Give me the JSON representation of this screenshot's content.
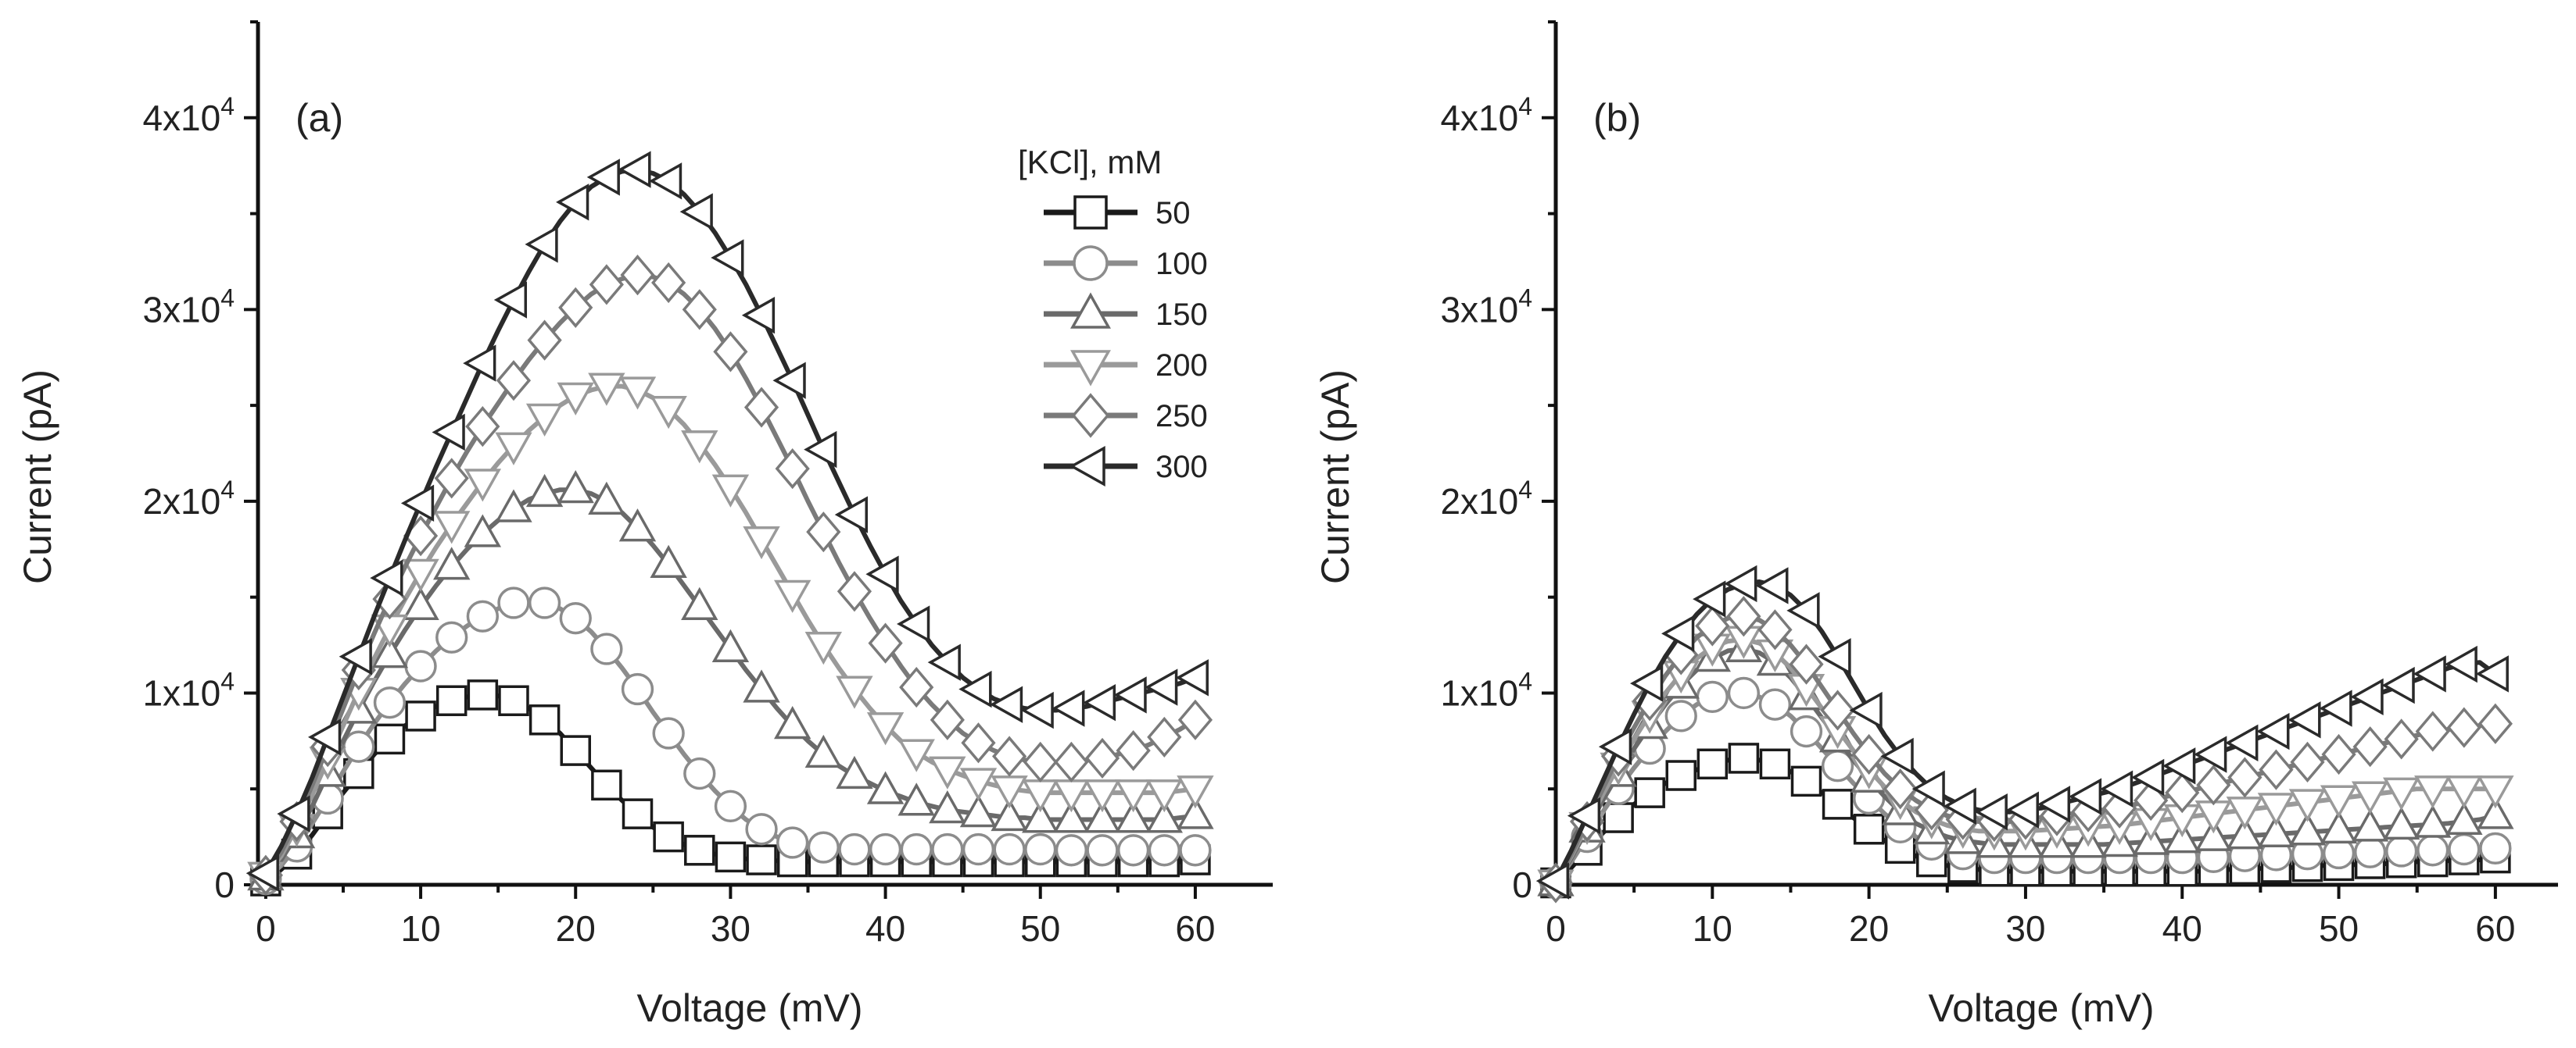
{
  "figure": {
    "legend": {
      "title": "[KCl], mM",
      "entries": [
        {
          "label": "50",
          "marker": "square",
          "color": "#1a1a1a"
        },
        {
          "label": "100",
          "marker": "circle",
          "color": "#8c8c8c"
        },
        {
          "label": "150",
          "marker": "triangle-up",
          "color": "#6a6a6a"
        },
        {
          "label": "200",
          "marker": "triangle-down",
          "color": "#9a9a9a"
        },
        {
          "label": "250",
          "marker": "diamond",
          "color": "#7a7a7a"
        },
        {
          "label": "300",
          "marker": "triangle-left",
          "color": "#2a2a2a"
        }
      ]
    }
  },
  "chart_data": [
    {
      "type": "line",
      "panel_label": "(a)",
      "xlabel": "Voltage (mV)",
      "ylabel": "Current (pA)",
      "xlim": [
        -0.5,
        65
      ],
      "ylim": [
        0,
        45000
      ],
      "xticks": [
        0,
        10,
        20,
        30,
        40,
        50,
        60
      ],
      "xtick_labels": [
        "0",
        "10",
        "20",
        "30",
        "40",
        "50",
        "60"
      ],
      "yticks": [
        0,
        10000,
        20000,
        30000,
        40000
      ],
      "ytick_labels": [
        {
          "text": "0",
          "exp": ""
        },
        {
          "text": "1x10",
          "exp": "4"
        },
        {
          "text": "2x10",
          "exp": "4"
        },
        {
          "text": "3x10",
          "exp": "4"
        },
        {
          "text": "4x10",
          "exp": "4"
        }
      ],
      "x": [
        0,
        1,
        2,
        3,
        4,
        5,
        6,
        7,
        8,
        9,
        10,
        11,
        12,
        13,
        14,
        15,
        16,
        17,
        18,
        19,
        20,
        21,
        22,
        23,
        24,
        25,
        26,
        27,
        28,
        29,
        30,
        31,
        32,
        33,
        34,
        35,
        36,
        37,
        38,
        39,
        40,
        41,
        42,
        43,
        44,
        45,
        46,
        47,
        48,
        49,
        50,
        51,
        52,
        53,
        54,
        55,
        56,
        57,
        58,
        59,
        60
      ],
      "series": [
        {
          "name": "50",
          "values": [
            200,
            800,
            1600,
            2600,
            3700,
            4800,
            5800,
            6800,
            7600,
            8300,
            8800,
            9300,
            9600,
            9800,
            9900,
            9850,
            9600,
            9200,
            8600,
            7900,
            7000,
            6100,
            5200,
            4400,
            3700,
            3000,
            2500,
            2100,
            1800,
            1600,
            1450,
            1350,
            1300,
            1250,
            1200,
            1200,
            1200,
            1200,
            1200,
            1200,
            1200,
            1200,
            1200,
            1200,
            1200,
            1200,
            1200,
            1200,
            1200,
            1200,
            1200,
            1200,
            1200,
            1200,
            1200,
            1200,
            1200,
            1200,
            1200,
            1200,
            1300
          ]
        },
        {
          "name": "100",
          "values": [
            300,
            1000,
            2000,
            3200,
            4500,
            5900,
            7200,
            8400,
            9500,
            10500,
            11400,
            12200,
            12900,
            13500,
            14000,
            14400,
            14700,
            14800,
            14700,
            14400,
            13900,
            13200,
            12300,
            11300,
            10200,
            9000,
            7900,
            6800,
            5800,
            4900,
            4100,
            3400,
            2900,
            2500,
            2200,
            2050,
            1950,
            1900,
            1850,
            1850,
            1850,
            1850,
            1850,
            1850,
            1850,
            1850,
            1850,
            1850,
            1850,
            1850,
            1850,
            1800,
            1800,
            1800,
            1800,
            1800,
            1800,
            1800,
            1800,
            1800,
            1800
          ]
        },
        {
          "name": "150",
          "values": [
            400,
            1300,
            2600,
            4100,
            5800,
            7500,
            9100,
            10600,
            12000,
            13300,
            14500,
            15600,
            16600,
            17500,
            18300,
            19000,
            19600,
            20100,
            20400,
            20600,
            20600,
            20400,
            20000,
            19400,
            18600,
            17700,
            16700,
            15600,
            14500,
            13400,
            12300,
            11200,
            10200,
            9200,
            8300,
            7500,
            6800,
            6200,
            5700,
            5300,
            4900,
            4600,
            4300,
            4100,
            3900,
            3800,
            3700,
            3600,
            3500,
            3500,
            3400,
            3400,
            3400,
            3400,
            3400,
            3400,
            3400,
            3400,
            3400,
            3500,
            3600
          ]
        },
        {
          "name": "200",
          "values": [
            500,
            1500,
            3000,
            4700,
            6500,
            8300,
            10100,
            11800,
            13400,
            14900,
            16300,
            17600,
            18800,
            19900,
            21000,
            22000,
            22900,
            23700,
            24400,
            25000,
            25500,
            25800,
            26000,
            26000,
            25800,
            25400,
            24800,
            24000,
            23000,
            21900,
            20700,
            19400,
            18000,
            16600,
            15200,
            13800,
            12500,
            11300,
            10200,
            9200,
            8300,
            7500,
            6900,
            6400,
            6000,
            5700,
            5400,
            5200,
            5000,
            4900,
            4800,
            4800,
            4800,
            4800,
            4800,
            4800,
            4800,
            4800,
            4800,
            4900,
            5000
          ]
        },
        {
          "name": "250",
          "values": [
            500,
            1700,
            3300,
            5200,
            7200,
            9200,
            11200,
            13100,
            14900,
            16600,
            18200,
            19700,
            21200,
            22600,
            23900,
            25100,
            26300,
            27400,
            28400,
            29300,
            30100,
            30800,
            31300,
            31600,
            31800,
            31700,
            31400,
            30800,
            30000,
            29000,
            27800,
            26400,
            24900,
            23300,
            21700,
            20000,
            18400,
            16800,
            15300,
            13900,
            12600,
            11400,
            10300,
            9400,
            8600,
            7900,
            7400,
            7000,
            6700,
            6500,
            6400,
            6400,
            6400,
            6500,
            6600,
            6800,
            7000,
            7300,
            7700,
            8100,
            8600
          ]
        },
        {
          "name": "300",
          "values": [
            600,
            2000,
            3700,
            5600,
            7700,
            9800,
            11900,
            14000,
            16000,
            18000,
            19900,
            21800,
            23600,
            25400,
            27200,
            28900,
            30500,
            32000,
            33400,
            34600,
            35600,
            36400,
            36900,
            37200,
            37300,
            37100,
            36700,
            36000,
            35100,
            34000,
            32700,
            31300,
            29700,
            28000,
            26300,
            24500,
            22700,
            21000,
            19300,
            17700,
            16200,
            14800,
            13600,
            12500,
            11600,
            10800,
            10200,
            9700,
            9400,
            9200,
            9100,
            9100,
            9200,
            9300,
            9500,
            9700,
            9900,
            10100,
            10300,
            10500,
            10800
          ]
        }
      ]
    },
    {
      "type": "line",
      "panel_label": "(b)",
      "xlabel": "Voltage (mV)",
      "ylabel": "Current (pA)",
      "xlim": [
        0,
        64
      ],
      "ylim": [
        0,
        45000
      ],
      "xticks": [
        0,
        10,
        20,
        30,
        40,
        50,
        60
      ],
      "xtick_labels": [
        "0",
        "10",
        "20",
        "30",
        "40",
        "50",
        "60"
      ],
      "yticks": [
        0,
        10000,
        20000,
        30000,
        40000
      ],
      "ytick_labels": [
        {
          "text": "0",
          "exp": ""
        },
        {
          "text": "1x10",
          "exp": "4"
        },
        {
          "text": "2x10",
          "exp": "4"
        },
        {
          "text": "3x10",
          "exp": "4"
        },
        {
          "text": "4x10",
          "exp": "4"
        }
      ],
      "x": [
        0,
        1,
        2,
        3,
        4,
        5,
        6,
        7,
        8,
        9,
        10,
        11,
        12,
        13,
        14,
        15,
        16,
        17,
        18,
        19,
        20,
        21,
        22,
        23,
        24,
        25,
        26,
        27,
        28,
        29,
        30,
        31,
        32,
        33,
        34,
        35,
        36,
        37,
        38,
        39,
        40,
        41,
        42,
        43,
        44,
        45,
        46,
        47,
        48,
        49,
        50,
        51,
        52,
        53,
        54,
        55,
        56,
        57,
        58,
        59,
        60
      ],
      "series": [
        {
          "name": "50",
          "values": [
            100,
            900,
            1800,
            2700,
            3500,
            4200,
            4800,
            5300,
            5700,
            6000,
            6300,
            6500,
            6600,
            6500,
            6300,
            5900,
            5400,
            4800,
            4200,
            3500,
            2900,
            2300,
            1900,
            1500,
            1200,
            1000,
            900,
            800,
            700,
            700,
            700,
            700,
            700,
            700,
            700,
            700,
            700,
            700,
            700,
            700,
            700,
            700,
            750,
            800,
            800,
            850,
            900,
            900,
            950,
            1000,
            1000,
            1050,
            1100,
            1100,
            1150,
            1200,
            1200,
            1250,
            1300,
            1300,
            1400
          ]
        },
        {
          "name": "100",
          "values": [
            100,
            1200,
            2500,
            3800,
            5000,
            6100,
            7100,
            8000,
            8800,
            9400,
            9800,
            10000,
            10000,
            9800,
            9400,
            8800,
            8000,
            7100,
            6200,
            5300,
            4500,
            3700,
            3000,
            2500,
            2100,
            1800,
            1600,
            1500,
            1400,
            1400,
            1400,
            1400,
            1400,
            1400,
            1400,
            1400,
            1400,
            1400,
            1400,
            1400,
            1400,
            1450,
            1450,
            1500,
            1500,
            1550,
            1550,
            1600,
            1600,
            1650,
            1650,
            1700,
            1700,
            1750,
            1750,
            1800,
            1800,
            1850,
            1850,
            1900,
            1900
          ]
        },
        {
          "name": "150",
          "values": [
            100,
            1400,
            2900,
            4400,
            5800,
            7100,
            8300,
            9400,
            10400,
            11200,
            11800,
            12200,
            12300,
            12100,
            11600,
            10800,
            9800,
            8700,
            7600,
            6500,
            5500,
            4600,
            3800,
            3200,
            2800,
            2500,
            2300,
            2200,
            2100,
            2100,
            2100,
            2100,
            2100,
            2100,
            2100,
            2100,
            2150,
            2200,
            2250,
            2300,
            2350,
            2400,
            2450,
            2500,
            2550,
            2600,
            2650,
            2700,
            2750,
            2800,
            2850,
            2900,
            2950,
            3000,
            3050,
            3100,
            3150,
            3200,
            3300,
            3400,
            3600
          ]
        },
        {
          "name": "200",
          "values": [
            100,
            1500,
            3100,
            4700,
            6200,
            7600,
            8900,
            10000,
            11000,
            11800,
            12400,
            12700,
            12800,
            12600,
            12100,
            11300,
            10300,
            9200,
            8100,
            7000,
            6000,
            5100,
            4400,
            3800,
            3400,
            3100,
            2900,
            2800,
            2800,
            2800,
            2800,
            2850,
            2900,
            2950,
            3000,
            3050,
            3100,
            3200,
            3300,
            3400,
            3500,
            3600,
            3700,
            3800,
            3900,
            4000,
            4100,
            4200,
            4300,
            4400,
            4500,
            4600,
            4700,
            4800,
            4900,
            5000,
            5000,
            5000,
            5000,
            5000,
            5000
          ]
        },
        {
          "name": "250",
          "values": [
            100,
            1600,
            3300,
            5000,
            6700,
            8200,
            9600,
            10900,
            12000,
            12900,
            13500,
            13900,
            14000,
            13800,
            13300,
            12500,
            11500,
            10300,
            9100,
            7900,
            6800,
            5800,
            5000,
            4400,
            3900,
            3600,
            3400,
            3300,
            3300,
            3300,
            3400,
            3500,
            3600,
            3700,
            3800,
            3900,
            4000,
            4200,
            4400,
            4600,
            4800,
            5000,
            5200,
            5400,
            5600,
            5800,
            6000,
            6200,
            6400,
            6600,
            6800,
            7000,
            7200,
            7400,
            7600,
            7800,
            8000,
            8100,
            8200,
            8300,
            8400
          ]
        },
        {
          "name": "300",
          "values": [
            200,
            1800,
            3600,
            5400,
            7200,
            8900,
            10500,
            11900,
            13100,
            14100,
            14900,
            15400,
            15700,
            15800,
            15600,
            15100,
            14300,
            13200,
            11900,
            10500,
            9100,
            7800,
            6700,
            5800,
            5000,
            4500,
            4100,
            3900,
            3800,
            3800,
            3900,
            4000,
            4200,
            4400,
            4600,
            4800,
            5000,
            5300,
            5600,
            5900,
            6200,
            6500,
            6800,
            7100,
            7400,
            7700,
            8000,
            8300,
            8600,
            8900,
            9200,
            9500,
            9800,
            10100,
            10400,
            10700,
            11000,
            11300,
            11500,
            11600,
            11000
          ]
        }
      ]
    }
  ]
}
